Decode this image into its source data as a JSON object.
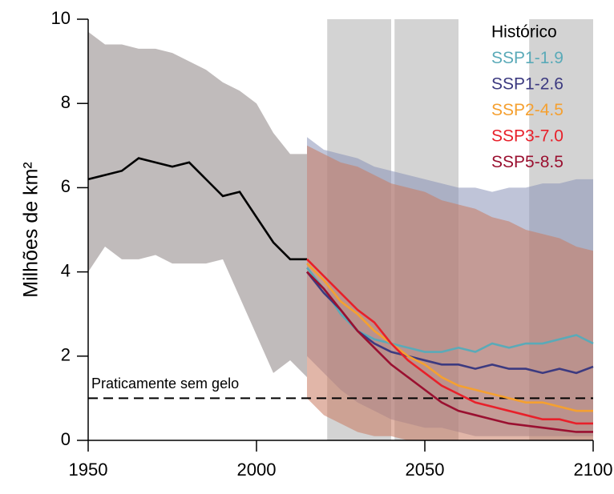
{
  "chart_data": {
    "type": "line",
    "y_label": "Milhões de km²",
    "annotation": {
      "text": "Praticamente sem gelo",
      "y": 1
    },
    "xlim": [
      1950,
      2100
    ],
    "xticks": [
      1950,
      2000,
      2050,
      2100
    ],
    "ylim": [
      0,
      10
    ],
    "yticks": [
      0,
      2,
      4,
      6,
      8,
      10
    ],
    "periods": [
      [
        2021,
        2040
      ],
      [
        2041,
        2060
      ],
      [
        2081,
        2100
      ]
    ],
    "bands": [
      {
        "color": "#8c8484",
        "x": [
          1950,
          1955,
          1960,
          1965,
          1970,
          1975,
          1980,
          1985,
          1990,
          1995,
          2000,
          2005,
          2010,
          2015
        ],
        "lower": [
          4.0,
          4.6,
          4.3,
          4.3,
          4.4,
          4.2,
          4.2,
          4.2,
          4.3,
          3.4,
          2.5,
          1.6,
          1.9,
          1.5
        ],
        "upper": [
          9.7,
          9.4,
          9.4,
          9.3,
          9.3,
          9.2,
          9.0,
          8.8,
          8.5,
          8.3,
          8.0,
          7.3,
          6.8,
          6.8
        ]
      },
      {
        "color": "#8a93b8",
        "x": [
          2015,
          2020,
          2025,
          2030,
          2035,
          2040,
          2045,
          2050,
          2055,
          2060,
          2065,
          2070,
          2075,
          2080,
          2085,
          2090,
          2095,
          2100
        ],
        "lower": [
          2.0,
          1.6,
          1.2,
          0.9,
          0.7,
          0.5,
          0.4,
          0.3,
          0.3,
          0.2,
          0.1,
          0.1,
          0.1,
          0.1,
          0.1,
          0.1,
          0.1,
          0.1
        ],
        "upper": [
          7.2,
          6.9,
          6.8,
          6.7,
          6.5,
          6.4,
          6.3,
          6.2,
          6.1,
          6.0,
          6.0,
          5.9,
          6.0,
          6.0,
          6.1,
          6.1,
          6.2,
          6.2
        ]
      },
      {
        "color": "#c87a60",
        "x": [
          2015,
          2020,
          2025,
          2030,
          2035,
          2040,
          2045,
          2050,
          2055,
          2060,
          2065,
          2070,
          2075,
          2080,
          2085,
          2090,
          2095,
          2100
        ],
        "lower": [
          1.0,
          0.6,
          0.4,
          0.2,
          0.1,
          0.1,
          0.0,
          0.0,
          0.0,
          0.0,
          0.0,
          0.0,
          0.0,
          0.0,
          0.0,
          0.0,
          0.0,
          0.0
        ],
        "upper": [
          7.0,
          6.8,
          6.6,
          6.5,
          6.3,
          6.1,
          6.0,
          5.9,
          5.7,
          5.6,
          5.5,
          5.3,
          5.2,
          5.0,
          4.9,
          4.8,
          4.6,
          4.5
        ]
      }
    ],
    "series": [
      {
        "name": "Histórico",
        "color": "#000000",
        "x": [
          1950,
          1955,
          1960,
          1965,
          1970,
          1975,
          1980,
          1985,
          1990,
          1995,
          2000,
          2005,
          2010,
          2015
        ],
        "values": [
          6.2,
          6.3,
          6.4,
          6.7,
          6.6,
          6.5,
          6.6,
          6.2,
          5.8,
          5.9,
          5.3,
          4.7,
          4.3,
          4.3
        ]
      },
      {
        "name": "SSP1-1.9",
        "color": "#5aaab8",
        "x": [
          2015,
          2020,
          2025,
          2030,
          2035,
          2040,
          2045,
          2050,
          2055,
          2060,
          2065,
          2070,
          2075,
          2080,
          2085,
          2090,
          2095,
          2100
        ],
        "values": [
          4.1,
          3.6,
          3.0,
          2.6,
          2.4,
          2.3,
          2.2,
          2.1,
          2.1,
          2.2,
          2.1,
          2.3,
          2.2,
          2.3,
          2.3,
          2.4,
          2.5,
          2.3
        ]
      },
      {
        "name": "SSP1-2.6",
        "color": "#3c3a80",
        "x": [
          2015,
          2020,
          2025,
          2030,
          2035,
          2040,
          2045,
          2050,
          2055,
          2060,
          2065,
          2070,
          2075,
          2080,
          2085,
          2090,
          2095,
          2100
        ],
        "values": [
          4.0,
          3.5,
          3.1,
          2.6,
          2.3,
          2.1,
          2.0,
          1.9,
          1.8,
          1.8,
          1.7,
          1.8,
          1.7,
          1.7,
          1.6,
          1.7,
          1.6,
          1.75
        ]
      },
      {
        "name": "SSP2-4.5",
        "color": "#f5a030",
        "x": [
          2015,
          2020,
          2025,
          2030,
          2035,
          2040,
          2045,
          2050,
          2055,
          2060,
          2065,
          2070,
          2075,
          2080,
          2085,
          2090,
          2095,
          2100
        ],
        "values": [
          4.2,
          3.8,
          3.3,
          3.0,
          2.6,
          2.3,
          2.0,
          1.8,
          1.5,
          1.3,
          1.2,
          1.1,
          1.0,
          0.9,
          0.9,
          0.8,
          0.7,
          0.7
        ]
      },
      {
        "name": "SSP3-7.0",
        "color": "#e8202a",
        "x": [
          2015,
          2020,
          2025,
          2030,
          2035,
          2040,
          2045,
          2050,
          2055,
          2060,
          2065,
          2070,
          2075,
          2080,
          2085,
          2090,
          2095,
          2100
        ],
        "values": [
          4.3,
          3.9,
          3.5,
          3.1,
          2.8,
          2.3,
          1.9,
          1.6,
          1.3,
          1.1,
          0.9,
          0.8,
          0.7,
          0.6,
          0.5,
          0.5,
          0.4,
          0.4
        ]
      },
      {
        "name": "SSP5-8.5",
        "color": "#9a1030",
        "x": [
          2015,
          2020,
          2025,
          2030,
          2035,
          2040,
          2045,
          2050,
          2055,
          2060,
          2065,
          2070,
          2075,
          2080,
          2085,
          2090,
          2095,
          2100
        ],
        "values": [
          4.0,
          3.6,
          3.1,
          2.6,
          2.2,
          1.8,
          1.5,
          1.2,
          0.9,
          0.7,
          0.6,
          0.5,
          0.4,
          0.35,
          0.3,
          0.25,
          0.2,
          0.2
        ]
      }
    ]
  }
}
